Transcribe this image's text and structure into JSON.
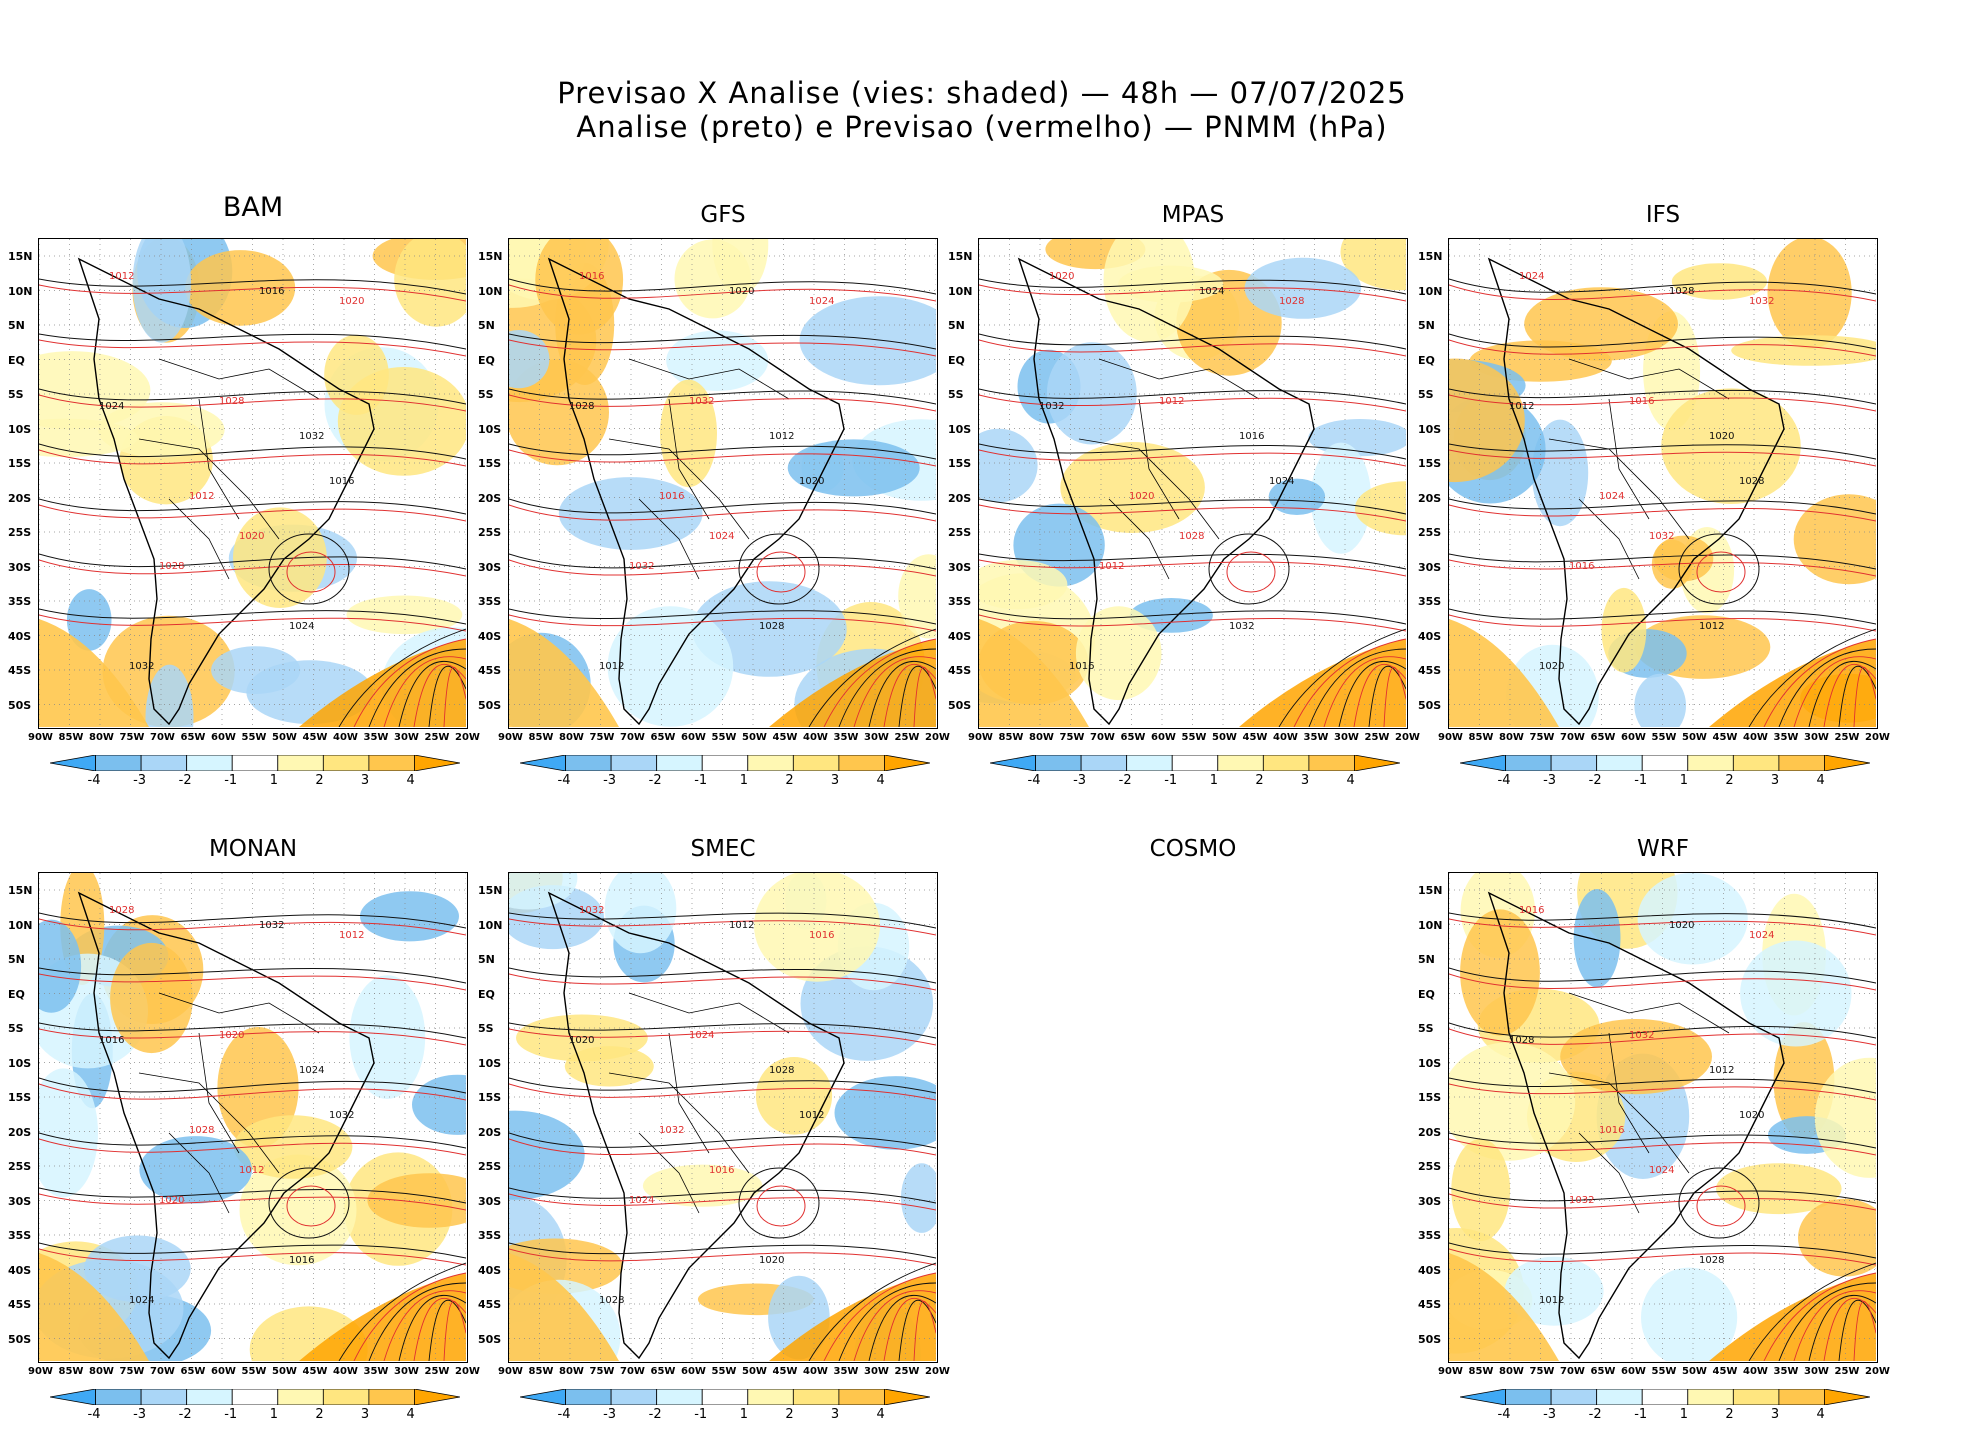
{
  "title": {
    "line1": "Previsao X Analise (vies: shaded) — 48h — 07/07/2025",
    "line2": "Analise (preto) e Previsao (vermelho) — PNMM (hPa)"
  },
  "panels": [
    {
      "name": "BAM",
      "empty": false
    },
    {
      "name": "GFS",
      "empty": false
    },
    {
      "name": "MPAS",
      "empty": false
    },
    {
      "name": "IFS",
      "empty": false
    },
    {
      "name": "MONAN",
      "empty": false
    },
    {
      "name": "SMEC",
      "empty": false
    },
    {
      "name": "COSMO",
      "empty": true
    },
    {
      "name": "WRF",
      "empty": false
    }
  ],
  "axes": {
    "lat_labels": [
      "15N",
      "10N",
      "5N",
      "EQ",
      "5S",
      "10S",
      "15S",
      "20S",
      "25S",
      "30S",
      "35S",
      "40S",
      "45S",
      "50S"
    ],
    "lon_labels": [
      "90W",
      "85W",
      "80W",
      "75W",
      "70W",
      "65W",
      "60W",
      "55W",
      "50W",
      "45W",
      "40W",
      "35W",
      "30W",
      "25W",
      "20W"
    ]
  },
  "colorbar": {
    "labels": [
      "-4",
      "-3",
      "-2",
      "-1",
      "1",
      "2",
      "3",
      "4"
    ],
    "colors": [
      "#3fa9f5",
      "#7bbfee",
      "#aad6f7",
      "#d6f5ff",
      "#ffffff",
      "#fff8b3",
      "#ffe680",
      "#ffc64d",
      "#ffa500"
    ]
  },
  "isobar_labels": [
    "1012",
    "1016",
    "1020",
    "1024",
    "1028",
    "1032"
  ],
  "colors": {
    "analysis": "#111111",
    "forecast": "#e03030",
    "neg_bias": "#aad6f7",
    "pos_bias": "#ffd24d"
  },
  "chart_data": {
    "type": "heatmap",
    "title": "Previsao X Analise (vies: shaded) — 48h — 07/07/2025",
    "subtitle": "Analise (preto) e Previsao (vermelho) — PNMM (hPa)",
    "variable": "PNMM (hPa)",
    "forecast_hours": 48,
    "date": "07/07/2025",
    "bias_levels": [
      -4,
      -3,
      -2,
      -1,
      1,
      2,
      3,
      4
    ],
    "lat_range": [
      -53,
      17
    ],
    "lon_range": [
      -90,
      -20
    ],
    "models": [
      "BAM",
      "GFS",
      "MPAS",
      "IFS",
      "MONAN",
      "SMEC",
      "COSMO",
      "WRF"
    ],
    "missing_models": [
      "COSMO"
    ]
  }
}
